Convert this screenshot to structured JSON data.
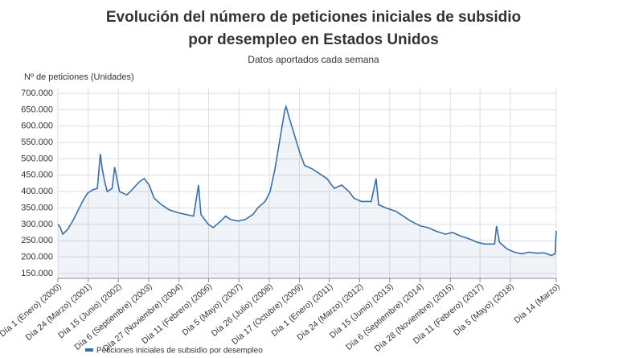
{
  "chart_data": {
    "type": "area",
    "title": "Evolución del número de peticiones iniciales de subsidio por desempleo en Estados Unidos",
    "subtitle": "Datos aportados cada semana",
    "ylabel": "Nº de peticiones (Unidades)",
    "grid": true,
    "xlim": [
      2000,
      2020.2
    ],
    "ylim": [
      135000,
      715000
    ],
    "yticks": [
      {
        "value": 150000,
        "label": "150.000"
      },
      {
        "value": 200000,
        "label": "200.000"
      },
      {
        "value": 250000,
        "label": "250.000"
      },
      {
        "value": 300000,
        "label": "300.000"
      },
      {
        "value": 350000,
        "label": "350.000"
      },
      {
        "value": 400000,
        "label": "400.000"
      },
      {
        "value": 450000,
        "label": "450.000"
      },
      {
        "value": 500000,
        "label": "500.000"
      },
      {
        "value": 550000,
        "label": "550.000"
      },
      {
        "value": 600000,
        "label": "600.000"
      },
      {
        "value": 650000,
        "label": "650.000"
      },
      {
        "value": 700000,
        "label": "700.000"
      }
    ],
    "xticks": [
      {
        "value": 2000.0,
        "label": "Día 1 (Enero) (2000)"
      },
      {
        "value": 2001.23,
        "label": "Día 24 (Marzo) (2001)"
      },
      {
        "value": 2002.45,
        "label": "Día 15 (Junio) (2002)"
      },
      {
        "value": 2003.68,
        "label": "Día 6 (Septiembre) (2003)"
      },
      {
        "value": 2004.91,
        "label": "Día 27 (Noviembre) (2004)"
      },
      {
        "value": 2006.11,
        "label": "Día 11 (Febrero) (2006)"
      },
      {
        "value": 2007.34,
        "label": "Día 5 (Mayo) (2007)"
      },
      {
        "value": 2008.57,
        "label": "Día 26 (Julio) (2008)"
      },
      {
        "value": 2009.79,
        "label": "Día 17 (Octubre) (2009)"
      },
      {
        "value": 2011.0,
        "label": "Día 1 (Enero) (2011)"
      },
      {
        "value": 2012.23,
        "label": "Día 24 (Marzo) (2012)"
      },
      {
        "value": 2013.45,
        "label": "Día 15 (Junio) (2013)"
      },
      {
        "value": 2014.68,
        "label": "Día 6 (Septiembre) (2014)"
      },
      {
        "value": 2015.91,
        "label": "Día 28 (Noviembre) (2015)"
      },
      {
        "value": 2017.11,
        "label": "Día 11 (Febrero) (2017)"
      },
      {
        "value": 2018.34,
        "label": "Día 5 (Mayo) (2018)"
      },
      {
        "value": 2020.2,
        "label": "Día 14 (Marzo)"
      }
    ],
    "x": [
      2000.0,
      2000.1,
      2000.2,
      2000.4,
      2000.6,
      2000.8,
      2001.0,
      2001.2,
      2001.4,
      2001.6,
      2001.72,
      2001.8,
      2001.9,
      2002.0,
      2002.2,
      2002.3,
      2002.5,
      2002.8,
      2003.0,
      2003.3,
      2003.5,
      2003.7,
      2003.9,
      2004.2,
      2004.5,
      2004.9,
      2005.2,
      2005.5,
      2005.7,
      2005.8,
      2006.1,
      2006.3,
      2006.6,
      2006.8,
      2007.0,
      2007.3,
      2007.6,
      2007.9,
      2008.1,
      2008.4,
      2008.6,
      2008.8,
      2009.0,
      2009.2,
      2009.25,
      2009.4,
      2009.6,
      2009.8,
      2010.0,
      2010.3,
      2010.6,
      2010.9,
      2011.2,
      2011.5,
      2011.8,
      2012.0,
      2012.3,
      2012.7,
      2012.9,
      2013.0,
      2013.3,
      2013.7,
      2014.0,
      2014.3,
      2014.7,
      2015.0,
      2015.3,
      2015.7,
      2016.0,
      2016.3,
      2016.7,
      2017.0,
      2017.3,
      2017.7,
      2017.78,
      2017.9,
      2018.2,
      2018.5,
      2018.8,
      2019.1,
      2019.4,
      2019.7,
      2020.0,
      2020.15,
      2020.2
    ],
    "series": [
      {
        "name": "Peticiones iniciales de subsidio por desempleo",
        "color": "#3b6ea5",
        "values": [
          300000,
          290000,
          270000,
          285000,
          310000,
          340000,
          370000,
          395000,
          405000,
          410000,
          515000,
          470000,
          430000,
          400000,
          410000,
          475000,
          400000,
          390000,
          405000,
          430000,
          440000,
          420000,
          380000,
          360000,
          345000,
          335000,
          330000,
          325000,
          420000,
          330000,
          300000,
          290000,
          310000,
          325000,
          315000,
          310000,
          315000,
          330000,
          350000,
          370000,
          400000,
          470000,
          560000,
          650000,
          660000,
          620000,
          570000,
          520000,
          480000,
          470000,
          455000,
          440000,
          410000,
          420000,
          400000,
          380000,
          370000,
          370000,
          440000,
          360000,
          350000,
          340000,
          325000,
          310000,
          295000,
          290000,
          280000,
          270000,
          275000,
          265000,
          255000,
          245000,
          240000,
          240000,
          295000,
          245000,
          225000,
          215000,
          210000,
          215000,
          212000,
          213000,
          205000,
          210000,
          280000
        ]
      }
    ]
  }
}
